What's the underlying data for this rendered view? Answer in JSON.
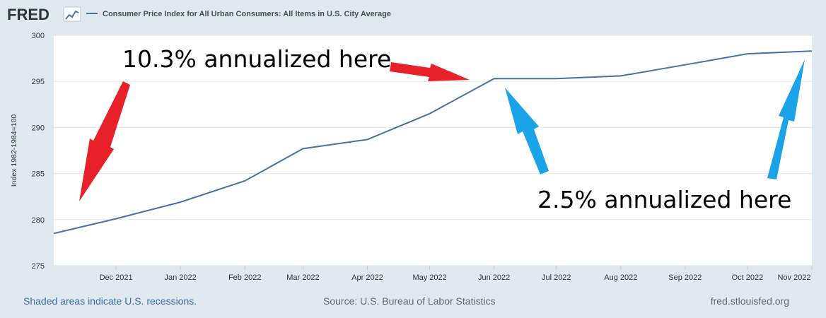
{
  "brand": {
    "logo_text": "FRED"
  },
  "chart_data": {
    "type": "line",
    "title": "",
    "legend": {
      "label": "Consumer Price Index for All Urban Consumers: All Items in U.S. City Average",
      "placement": "top-left"
    },
    "ylabel": "Index 1982-1984=100",
    "xlabel": "",
    "ylim": [
      275,
      300
    ],
    "yticks": [
      275,
      280,
      285,
      290,
      295,
      300
    ],
    "xlim": [
      "2021-11-01",
      "2022-11-01"
    ],
    "xtick_labels": [
      "Dec 2021",
      "Jan 2022",
      "Feb 2022",
      "Mar 2022",
      "Apr 2022",
      "May 2022",
      "Jun 2022",
      "Jul 2022",
      "Aug 2022",
      "Sep 2022",
      "Oct 2022",
      "Nov 2022"
    ],
    "grid": true,
    "series": [
      {
        "x": [
          "2021-11-01",
          "2021-12-01",
          "2022-01-01",
          "2022-02-01",
          "2022-03-01",
          "2022-04-01",
          "2022-05-01",
          "2022-06-01",
          "2022-07-01",
          "2022-08-01",
          "2022-09-01",
          "2022-10-01",
          "2022-11-01"
        ],
        "values": [
          278.5,
          280.1,
          281.9,
          284.2,
          287.7,
          288.7,
          291.5,
          295.3,
          295.3,
          295.6,
          296.8,
          298.0,
          298.3
        ],
        "color": "#4572a7"
      }
    ],
    "annotations": [
      {
        "text": "10.3% annualized here",
        "arrow_color": "#e8202a"
      },
      {
        "text": "2.5% annualized here",
        "arrow_color": "#1aa3e8"
      }
    ]
  },
  "footer": {
    "recessions_note": "Shaded areas indicate U.S. recessions.",
    "source": "Source: U.S. Bureau of Labor Statistics",
    "site": "fred.stlouisfed.org"
  },
  "colors": {
    "background": "#e1e9f0",
    "plot_background": "#ffffff",
    "line": "#4572a7",
    "gridline": "#e6e6e6",
    "red_arrow": "#e8202a",
    "blue_arrow": "#1aa3e8",
    "footer_link": "#3a6fa8",
    "footer_gray": "#666666"
  }
}
